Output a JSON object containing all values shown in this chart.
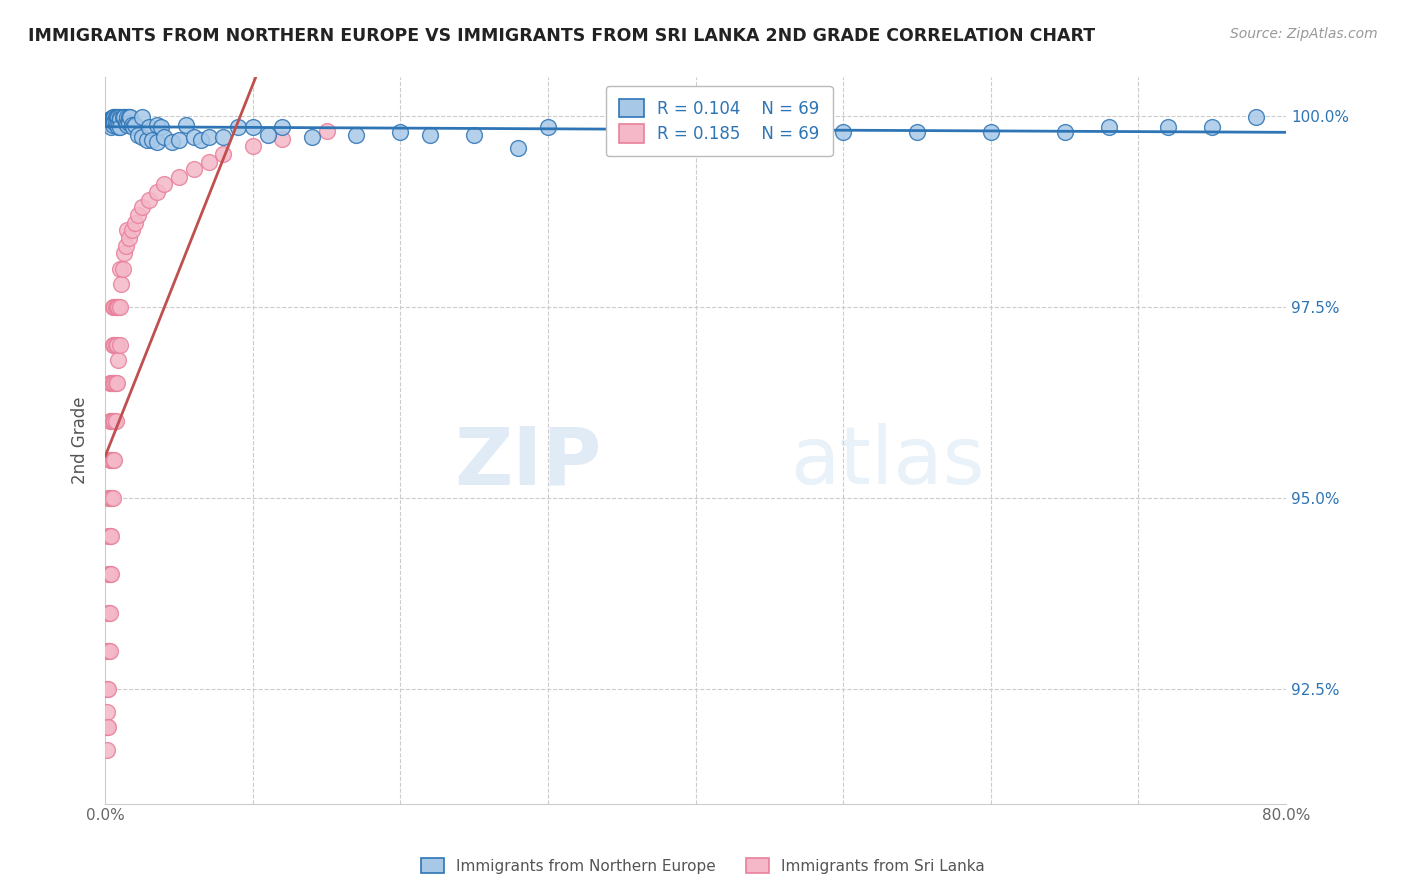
{
  "title": "IMMIGRANTS FROM NORTHERN EUROPE VS IMMIGRANTS FROM SRI LANKA 2ND GRADE CORRELATION CHART",
  "source": "Source: ZipAtlas.com",
  "ylabel": "2nd Grade",
  "xlim": [
    0.0,
    0.8
  ],
  "ylim": [
    0.91,
    1.005
  ],
  "xticks": [
    0.0,
    0.1,
    0.2,
    0.3,
    0.4,
    0.5,
    0.6,
    0.7,
    0.8
  ],
  "xticklabels": [
    "0.0%",
    "",
    "",
    "",
    "",
    "",
    "",
    "",
    "80.0%"
  ],
  "yticks": [
    0.925,
    0.95,
    0.975,
    1.0
  ],
  "yticklabels": [
    "92.5%",
    "95.0%",
    "97.5%",
    "100.0%"
  ],
  "R_blue": 0.104,
  "N_blue": 69,
  "R_pink": 0.185,
  "N_pink": 69,
  "blue_color": "#A8C8E8",
  "pink_color": "#F4B8C8",
  "trend_blue_color": "#2E75B6",
  "trend_pink_color": "#C0504D",
  "blue_scatter_x": [
    0.002,
    0.003,
    0.004,
    0.004,
    0.005,
    0.005,
    0.005,
    0.005,
    0.006,
    0.006,
    0.007,
    0.007,
    0.008,
    0.008,
    0.009,
    0.009,
    0.01,
    0.01,
    0.01,
    0.012,
    0.013,
    0.014,
    0.015,
    0.015,
    0.016,
    0.016,
    0.017,
    0.018,
    0.019,
    0.02,
    0.022,
    0.025,
    0.025,
    0.028,
    0.03,
    0.032,
    0.035,
    0.035,
    0.038,
    0.04,
    0.045,
    0.05,
    0.055,
    0.06,
    0.065,
    0.07,
    0.08,
    0.09,
    0.1,
    0.11,
    0.12,
    0.14,
    0.17,
    0.2,
    0.22,
    0.25,
    0.28,
    0.3,
    0.35,
    0.4,
    0.45,
    0.5,
    0.55,
    0.6,
    0.65,
    0.68,
    0.72,
    0.75,
    0.78
  ],
  "blue_scatter_y": [
    0.999,
    0.9995,
    0.9995,
    0.9985,
    0.9998,
    0.9995,
    0.9992,
    0.9988,
    0.9998,
    0.9992,
    0.9998,
    0.999,
    0.9998,
    0.9988,
    0.9998,
    0.9985,
    0.9998,
    0.9995,
    0.9985,
    0.9998,
    0.9998,
    0.999,
    0.9998,
    0.9988,
    0.9998,
    0.999,
    0.9998,
    0.9988,
    0.9985,
    0.9988,
    0.9975,
    0.9998,
    0.9972,
    0.9968,
    0.9985,
    0.9968,
    0.9988,
    0.9965,
    0.9985,
    0.9972,
    0.9965,
    0.9968,
    0.9988,
    0.9972,
    0.9968,
    0.9972,
    0.9972,
    0.9985,
    0.9985,
    0.9975,
    0.9985,
    0.9972,
    0.9975,
    0.9978,
    0.9975,
    0.9975,
    0.9958,
    0.9985,
    0.9978,
    0.9985,
    0.9978,
    0.9978,
    0.9978,
    0.9978,
    0.9978,
    0.9985,
    0.9985,
    0.9985,
    0.9998
  ],
  "pink_scatter_x": [
    0.001,
    0.001,
    0.001,
    0.001,
    0.001,
    0.002,
    0.002,
    0.002,
    0.002,
    0.002,
    0.002,
    0.002,
    0.003,
    0.003,
    0.003,
    0.003,
    0.003,
    0.003,
    0.003,
    0.003,
    0.004,
    0.004,
    0.004,
    0.004,
    0.004,
    0.004,
    0.005,
    0.005,
    0.005,
    0.005,
    0.005,
    0.005,
    0.006,
    0.006,
    0.006,
    0.006,
    0.006,
    0.007,
    0.007,
    0.007,
    0.007,
    0.008,
    0.008,
    0.008,
    0.009,
    0.009,
    0.01,
    0.01,
    0.01,
    0.011,
    0.012,
    0.013,
    0.014,
    0.015,
    0.016,
    0.018,
    0.02,
    0.022,
    0.025,
    0.03,
    0.035,
    0.04,
    0.05,
    0.06,
    0.07,
    0.08,
    0.1,
    0.12,
    0.15
  ],
  "pink_scatter_y": [
    0.917,
    0.92,
    0.922,
    0.925,
    0.93,
    0.92,
    0.925,
    0.93,
    0.935,
    0.94,
    0.945,
    0.95,
    0.93,
    0.935,
    0.94,
    0.945,
    0.95,
    0.955,
    0.96,
    0.965,
    0.94,
    0.945,
    0.95,
    0.955,
    0.96,
    0.965,
    0.95,
    0.955,
    0.96,
    0.965,
    0.97,
    0.975,
    0.955,
    0.96,
    0.965,
    0.97,
    0.975,
    0.96,
    0.965,
    0.97,
    0.975,
    0.965,
    0.97,
    0.975,
    0.968,
    0.975,
    0.97,
    0.975,
    0.98,
    0.978,
    0.98,
    0.982,
    0.983,
    0.985,
    0.984,
    0.985,
    0.986,
    0.987,
    0.988,
    0.989,
    0.99,
    0.991,
    0.992,
    0.993,
    0.994,
    0.995,
    0.996,
    0.997,
    0.998
  ],
  "watermark_zip": "ZIP",
  "watermark_atlas": "atlas",
  "background_color": "#ffffff",
  "grid_color": "#cccccc"
}
